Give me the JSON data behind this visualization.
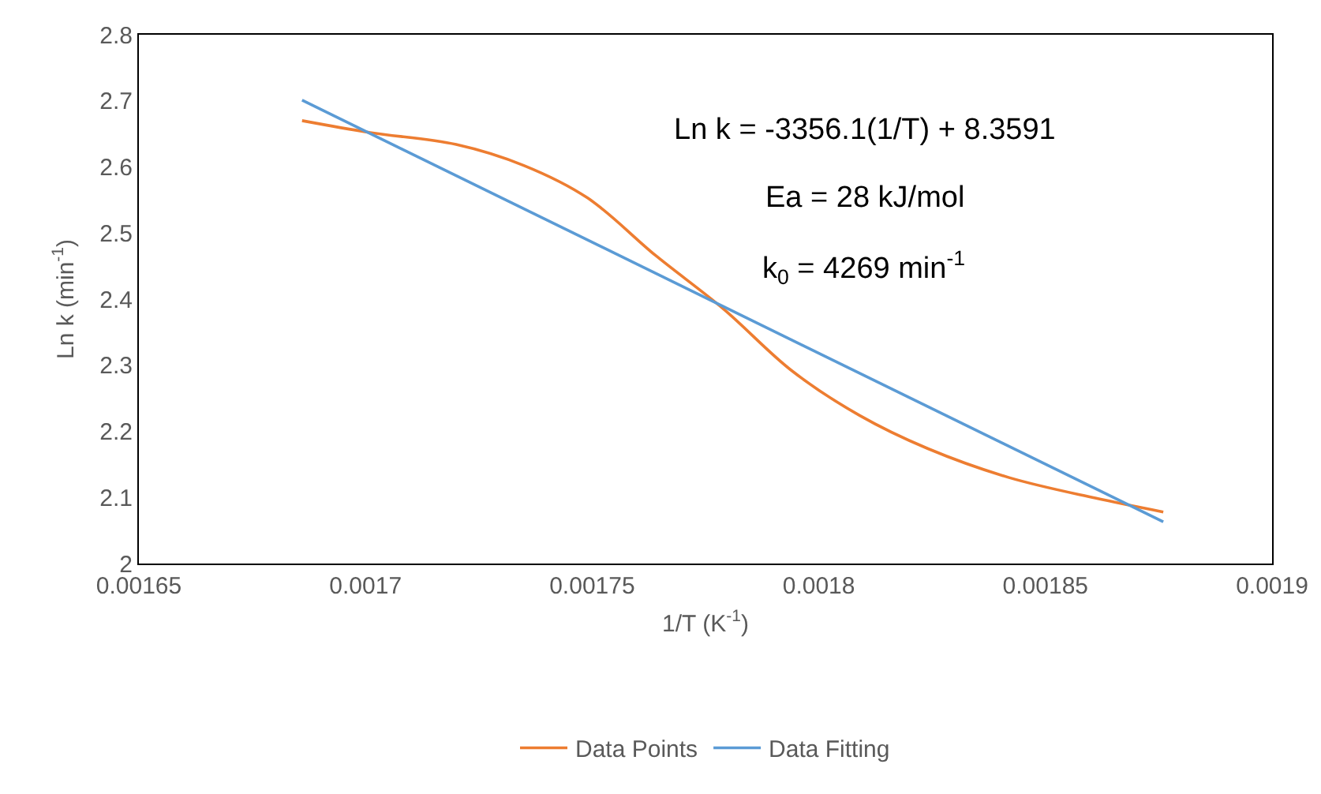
{
  "chart_data": {
    "type": "line",
    "xlabel": "1/T (K$^{-1}$)",
    "ylabel": "Ln k (min$^{-1}$)",
    "series": [
      {
        "name": "Data Points",
        "color": "#ed7d31",
        "x": [
          0.001686,
          0.001701,
          0.00172,
          0.001735,
          0.001749,
          0.001764,
          0.001779,
          0.001794,
          0.001809,
          0.001824,
          0.001842,
          0.001861,
          0.001876
        ],
        "values": [
          2.67,
          2.652,
          2.634,
          2.602,
          2.553,
          2.466,
          2.385,
          2.292,
          2.224,
          2.174,
          2.13,
          2.099,
          2.078
        ]
      },
      {
        "name": "Data Fitting",
        "color": "#5b9bd5",
        "x": [
          0.001686,
          0.001876
        ],
        "values": [
          2.701,
          2.063
        ]
      }
    ],
    "xlim": [
      0.00165,
      0.0019
    ],
    "xticks": [
      0.00165,
      0.0017,
      0.00175,
      0.0018,
      0.00185,
      0.0019
    ],
    "ylim": [
      2,
      2.8
    ],
    "yticks": [
      2,
      2.1,
      2.2,
      2.3,
      2.4,
      2.5,
      2.6,
      2.7,
      2.8
    ],
    "grid": false,
    "legend": "bottom",
    "marker": "none",
    "line_style": "solid",
    "annotations": [
      "Ln k = -3356.1(1/T) + 8.3591",
      "Ea = 28 kJ/mol",
      "k$_{0}$ = 4269 min$^{-1}$"
    ]
  }
}
